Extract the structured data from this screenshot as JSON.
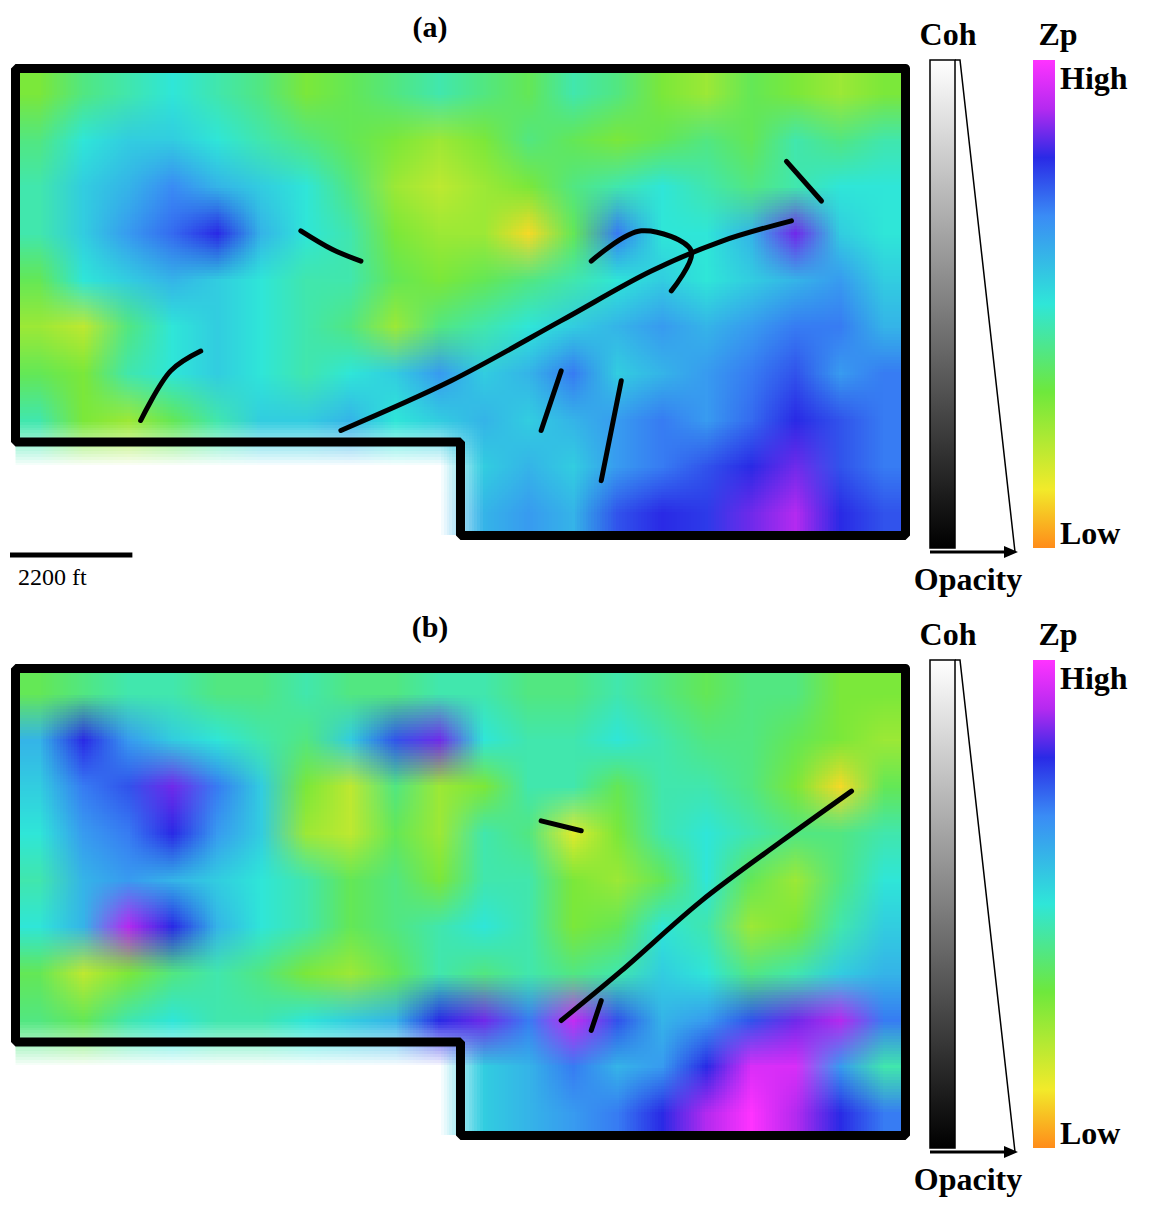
{
  "chart_data": [
    {
      "type": "heatmap",
      "title": "(a)",
      "tick_labels": false,
      "xlim": [
        0,
        16000
      ],
      "ylim": [
        0,
        8000
      ],
      "zp_grid": [
        [
          0.3,
          0.4,
          0.45,
          0.5,
          0.45,
          0.4,
          0.3,
          0.35,
          0.4,
          0.45,
          0.4,
          0.35,
          0.45,
          0.4,
          0.3,
          0.25,
          0.35,
          0.3,
          0.25,
          0.3
        ],
        [
          0.4,
          0.5,
          0.55,
          0.55,
          0.5,
          0.45,
          0.4,
          0.35,
          0.3,
          0.25,
          0.3,
          0.4,
          0.35,
          0.3,
          0.35,
          0.4,
          0.35,
          0.45,
          0.4,
          0.45
        ],
        [
          0.45,
          0.55,
          0.6,
          0.68,
          0.6,
          0.55,
          0.5,
          0.4,
          0.25,
          0.2,
          0.25,
          0.3,
          0.4,
          0.45,
          0.5,
          0.45,
          0.4,
          0.45,
          0.5,
          0.5
        ],
        [
          0.45,
          0.55,
          0.65,
          0.72,
          0.8,
          0.6,
          0.5,
          0.45,
          0.3,
          0.25,
          0.25,
          0.1,
          0.35,
          0.7,
          0.5,
          0.5,
          0.6,
          0.85,
          0.55,
          0.5
        ],
        [
          0.35,
          0.5,
          0.55,
          0.6,
          0.55,
          0.5,
          0.45,
          0.45,
          0.35,
          0.3,
          0.35,
          0.4,
          0.45,
          0.5,
          0.55,
          0.5,
          0.55,
          0.6,
          0.65,
          0.55
        ],
        [
          0.25,
          0.2,
          0.4,
          0.5,
          0.55,
          0.5,
          0.45,
          0.4,
          0.25,
          0.4,
          0.45,
          0.5,
          0.55,
          0.6,
          0.65,
          0.6,
          0.65,
          0.7,
          0.7,
          0.6
        ],
        [
          0.35,
          0.3,
          0.45,
          0.5,
          0.55,
          0.5,
          0.45,
          0.5,
          0.55,
          0.65,
          0.55,
          0.6,
          0.7,
          0.55,
          0.6,
          0.65,
          0.7,
          0.75,
          0.65,
          0.7
        ],
        [
          0.45,
          0.3,
          0.25,
          0.35,
          0.45,
          0.55,
          0.55,
          0.6,
          0.5,
          0.55,
          0.6,
          0.55,
          0.6,
          0.65,
          0.7,
          0.65,
          0.72,
          0.8,
          0.75,
          0.7
        ],
        [
          null,
          null,
          null,
          null,
          null,
          null,
          null,
          null,
          null,
          null,
          0.55,
          0.6,
          0.55,
          0.65,
          0.7,
          0.75,
          0.8,
          0.85,
          0.75,
          0.7
        ],
        [
          null,
          null,
          null,
          null,
          null,
          null,
          null,
          null,
          null,
          null,
          0.6,
          0.65,
          0.6,
          0.75,
          0.8,
          0.78,
          0.85,
          0.9,
          0.8,
          0.75
        ]
      ],
      "coherence_lineaments": [
        [
          [
            5850,
            1800
          ],
          [
            7830,
            2650
          ],
          [
            9810,
            3680
          ],
          [
            11430,
            4530
          ],
          [
            12690,
            5040
          ],
          [
            13950,
            5390
          ]
        ],
        [
          [
            2250,
            1970
          ],
          [
            2790,
            2820
          ],
          [
            3330,
            3160
          ]
        ],
        [
          [
            5130,
            5220
          ],
          [
            5700,
            4900
          ],
          [
            6210,
            4700
          ]
        ],
        [
          [
            10350,
            4700
          ],
          [
            11250,
            5220
          ],
          [
            12150,
            4870
          ],
          [
            11790,
            4190
          ]
        ],
        [
          [
            13860,
            6410
          ],
          [
            14490,
            5730
          ]
        ],
        [
          [
            10890,
            2650
          ],
          [
            10530,
            940
          ]
        ],
        [
          [
            9810,
            2820
          ],
          [
            9450,
            1800
          ]
        ]
      ],
      "coh_colorbar": {
        "label": "Coh",
        "axis_label": "Opacity"
      },
      "zp_colorbar": {
        "label": "Zp",
        "range": [
          0,
          1
        ],
        "ticks": [
          {
            "value": 1,
            "label": "High"
          },
          {
            "value": 0,
            "label": "Low"
          }
        ]
      },
      "scale_bar": {
        "length": 2200,
        "label": "2200 ft"
      }
    },
    {
      "type": "heatmap",
      "title": "(b)",
      "tick_labels": false,
      "xlim": [
        0,
        16000
      ],
      "ylim": [
        0,
        8000
      ],
      "zp_grid": [
        [
          0.35,
          0.4,
          0.45,
          0.45,
          0.4,
          0.4,
          0.45,
          0.4,
          0.4,
          0.45,
          0.45,
          0.4,
          0.4,
          0.45,
          0.4,
          0.35,
          0.4,
          0.4,
          0.3,
          0.3
        ],
        [
          0.6,
          0.8,
          0.65,
          0.55,
          0.5,
          0.45,
          0.4,
          0.55,
          0.75,
          0.85,
          0.5,
          0.45,
          0.45,
          0.5,
          0.45,
          0.4,
          0.4,
          0.35,
          0.3,
          0.25
        ],
        [
          0.55,
          0.7,
          0.75,
          0.85,
          0.7,
          0.55,
          0.3,
          0.2,
          0.4,
          0.25,
          0.3,
          0.45,
          0.45,
          0.35,
          0.45,
          0.45,
          0.4,
          0.3,
          0.1,
          0.35
        ],
        [
          0.5,
          0.65,
          0.7,
          0.8,
          0.65,
          0.55,
          0.25,
          0.2,
          0.35,
          0.25,
          0.45,
          0.4,
          0.15,
          0.3,
          0.45,
          0.5,
          0.45,
          0.4,
          0.4,
          0.45
        ],
        [
          0.45,
          0.6,
          0.65,
          0.6,
          0.55,
          0.5,
          0.45,
          0.35,
          0.4,
          0.3,
          0.45,
          0.45,
          0.3,
          0.25,
          0.35,
          0.5,
          0.35,
          0.25,
          0.4,
          0.5
        ],
        [
          0.5,
          0.6,
          0.9,
          0.8,
          0.6,
          0.5,
          0.45,
          0.35,
          0.4,
          0.45,
          0.5,
          0.45,
          0.3,
          0.35,
          0.5,
          0.45,
          0.25,
          0.3,
          0.45,
          0.55
        ],
        [
          0.35,
          0.2,
          0.3,
          0.4,
          0.45,
          0.4,
          0.3,
          0.25,
          0.35,
          0.45,
          0.4,
          0.45,
          0.4,
          0.45,
          0.55,
          0.5,
          0.4,
          0.45,
          0.55,
          0.6
        ],
        [
          0.4,
          0.35,
          0.45,
          0.5,
          0.45,
          0.45,
          0.5,
          0.55,
          0.6,
          0.8,
          0.85,
          0.7,
          0.92,
          0.75,
          0.6,
          0.65,
          0.75,
          0.85,
          0.9,
          0.7
        ],
        [
          null,
          null,
          null,
          null,
          null,
          null,
          null,
          null,
          null,
          null,
          0.55,
          0.6,
          0.7,
          0.6,
          0.65,
          0.8,
          0.95,
          0.95,
          0.65,
          0.45
        ],
        [
          null,
          null,
          null,
          null,
          null,
          null,
          null,
          null,
          null,
          null,
          0.55,
          0.6,
          0.65,
          0.7,
          0.8,
          0.9,
          1.0,
          0.9,
          0.8,
          0.7
        ]
      ],
      "coherence_lineaments": [
        [
          [
            9810,
            1970
          ],
          [
            10890,
            2820
          ],
          [
            12330,
            4020
          ],
          [
            13770,
            5040
          ],
          [
            15030,
            5900
          ]
        ],
        [
          [
            9450,
            5390
          ],
          [
            10170,
            5220
          ]
        ],
        [
          [
            10530,
            2310
          ],
          [
            10350,
            1800
          ]
        ]
      ],
      "coh_colorbar": {
        "label": "Coh",
        "axis_label": "Opacity"
      },
      "zp_colorbar": {
        "label": "Zp",
        "range": [
          0,
          1
        ],
        "ticks": [
          {
            "value": 1,
            "label": "High"
          },
          {
            "value": 0,
            "label": "Low"
          }
        ]
      }
    }
  ]
}
